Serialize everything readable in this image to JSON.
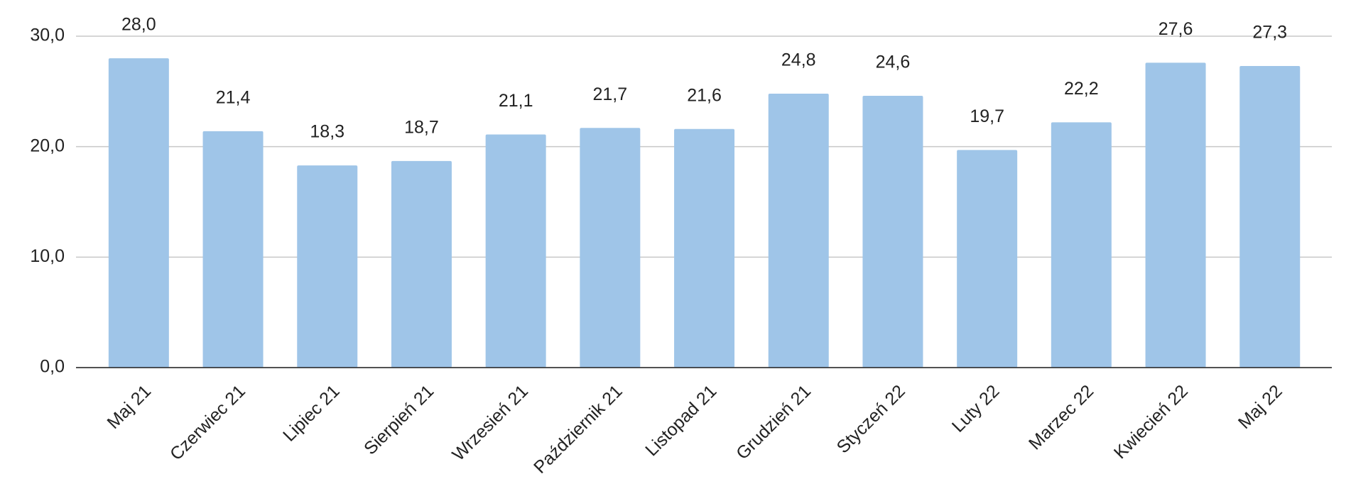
{
  "chart_data": {
    "type": "bar",
    "categories": [
      "Maj 21",
      "Czerwiec 21",
      "Lipiec 21",
      "Sierpień 21",
      "Wrzesień 21",
      "Październik 21",
      "Listopad 21",
      "Grudzień 21",
      "Styczeń 22",
      "Luty 22",
      "Marzec 22",
      "Kwiecień 22",
      "Maj 22"
    ],
    "values": [
      28.0,
      21.4,
      18.3,
      18.7,
      21.1,
      21.7,
      21.6,
      24.8,
      24.6,
      19.7,
      22.2,
      27.6,
      27.3
    ],
    "value_labels": [
      "28,0",
      "21,4",
      "18,3",
      "18,7",
      "21,1",
      "21,7",
      "21,6",
      "24,8",
      "24,6",
      "19,7",
      "22,2",
      "27,6",
      "27,3"
    ],
    "color": "#9fc5e8",
    "ylim": [
      0,
      30
    ],
    "yticks": [
      {
        "value": 0,
        "label": "0,0"
      },
      {
        "value": 10,
        "label": "10,0"
      },
      {
        "value": 20,
        "label": "20,0"
      },
      {
        "value": 30,
        "label": "30,0"
      }
    ],
    "grid": true
  }
}
